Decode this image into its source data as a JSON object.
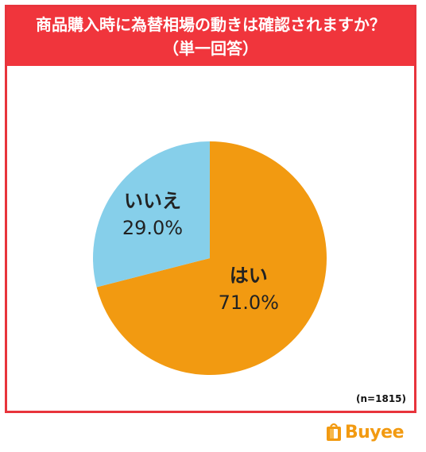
{
  "header": {
    "title_line1": "商品購入時に為替相場の動きは確認されますか？",
    "title_line2": "（単一回答）"
  },
  "sample_note": "(n=1815)",
  "logo": {
    "text": "Buyee",
    "icon": "buyee-bag-icon",
    "color": "#f29a11"
  },
  "colors": {
    "frame": "#e8343c",
    "title_bg": "#f0353c",
    "yes": "#f29a11",
    "no": "#86cfea"
  },
  "chart_data": {
    "type": "pie",
    "title": "商品購入時に為替相場の動きは確認されますか？",
    "subtitle": "（単一回答）",
    "slices": [
      {
        "label": "はい",
        "value": 71.0,
        "display": "71.0%",
        "color": "#f29a11"
      },
      {
        "label": "いいえ",
        "value": 29.0,
        "display": "29.0%",
        "color": "#86cfea"
      }
    ],
    "start": "12 o'clock",
    "direction": "clockwise",
    "sample": "(n=1815)"
  }
}
